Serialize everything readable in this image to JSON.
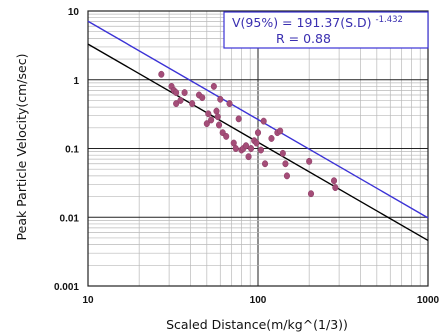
{
  "chart_data": {
    "type": "scatter",
    "xlabel": "Scaled Distance(m/kg^(1/3))",
    "ylabel": "Peak Particle Velocity(cm/sec)",
    "xscale": "log",
    "yscale": "log",
    "xlim": [
      10,
      1000
    ],
    "ylim": [
      0.001,
      10
    ],
    "grid": true,
    "x_ticks": [
      "10",
      "100",
      "1000"
    ],
    "y_ticks": [
      "0.001",
      "0.01",
      "0.1",
      "1",
      "10"
    ],
    "annotation": {
      "equation_main": "V(95%) = 191.37(S.D)",
      "equation_exponent": "-1.432",
      "r_value": "R = 0.88"
    },
    "lines": [
      {
        "color": "#3b32d6",
        "x": [
          10,
          1000
        ],
        "y": [
          7.1,
          0.0098
        ]
      },
      {
        "color": "#000000",
        "x": [
          10,
          1000
        ],
        "y": [
          3.3,
          0.0046
        ]
      }
    ],
    "points": {
      "color": "#a44d78",
      "x": [
        27,
        31,
        32,
        33,
        33,
        37,
        35,
        41,
        45,
        47,
        50,
        51,
        53,
        55,
        57,
        58,
        59,
        60,
        62,
        65,
        68,
        72,
        74,
        77,
        80,
        82,
        85,
        88,
        91,
        95,
        98,
        100,
        104,
        108,
        110,
        120,
        130,
        135,
        140,
        145,
        148,
        200,
        205,
        280,
        285
      ],
      "y": [
        1.2,
        0.8,
        0.7,
        0.45,
        0.65,
        0.65,
        0.5,
        0.45,
        0.6,
        0.55,
        0.23,
        0.32,
        0.26,
        0.8,
        0.35,
        0.29,
        0.22,
        0.52,
        0.17,
        0.15,
        0.45,
        0.12,
        0.1,
        0.27,
        0.095,
        0.1,
        0.11,
        0.076,
        0.1,
        0.13,
        0.12,
        0.17,
        0.095,
        0.25,
        0.06,
        0.14,
        0.17,
        0.18,
        0.085,
        0.06,
        0.04,
        0.065,
        0.022,
        0.034,
        0.027
      ]
    }
  }
}
